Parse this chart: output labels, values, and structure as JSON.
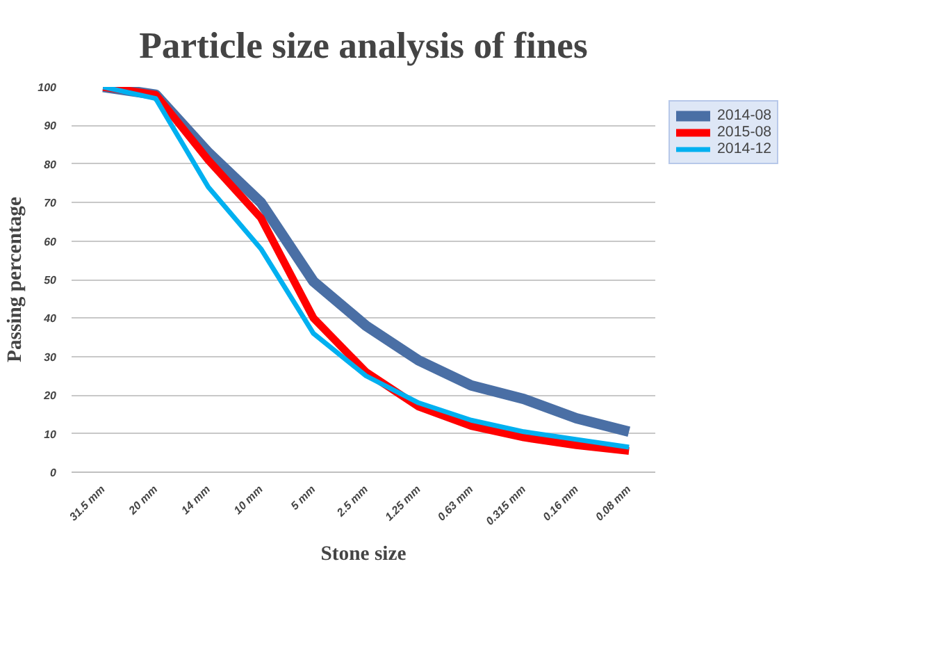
{
  "chart_data": {
    "type": "line",
    "title": "Particle size analysis of fines",
    "xlabel": "Stone size",
    "ylabel": "Passing percentage",
    "categories": [
      "31.5 mm",
      "20 mm",
      "14 mm",
      "10 mm",
      "5 mm",
      "2.5 mm",
      "1.25 mm",
      "0.63 mm",
      "0.315 mm",
      "0.16 mm",
      "0.08 mm"
    ],
    "series": [
      {
        "name": "2014-08",
        "color": "#4a6fa5",
        "values": [
          100,
          98,
          83,
          70,
          49.5,
          38,
          29,
          22.5,
          19,
          14,
          10.5
        ]
      },
      {
        "name": "2015-08",
        "color": "#ff0000",
        "values": [
          100,
          98,
          81,
          66,
          40,
          26,
          17,
          12,
          9,
          7,
          5.5
        ]
      },
      {
        "name": "2014-12",
        "color": "#00b0f0",
        "values": [
          100,
          97,
          74,
          58,
          36,
          25,
          18,
          13.5,
          10.5,
          8.5,
          6.5
        ]
      }
    ],
    "ylim": [
      0,
      100
    ],
    "yticks": [
      0,
      10,
      20,
      30,
      40,
      50,
      60,
      70,
      80,
      90,
      100
    ],
    "grid": "y",
    "legend": "top right",
    "marker": "none",
    "line_style": "solid"
  }
}
